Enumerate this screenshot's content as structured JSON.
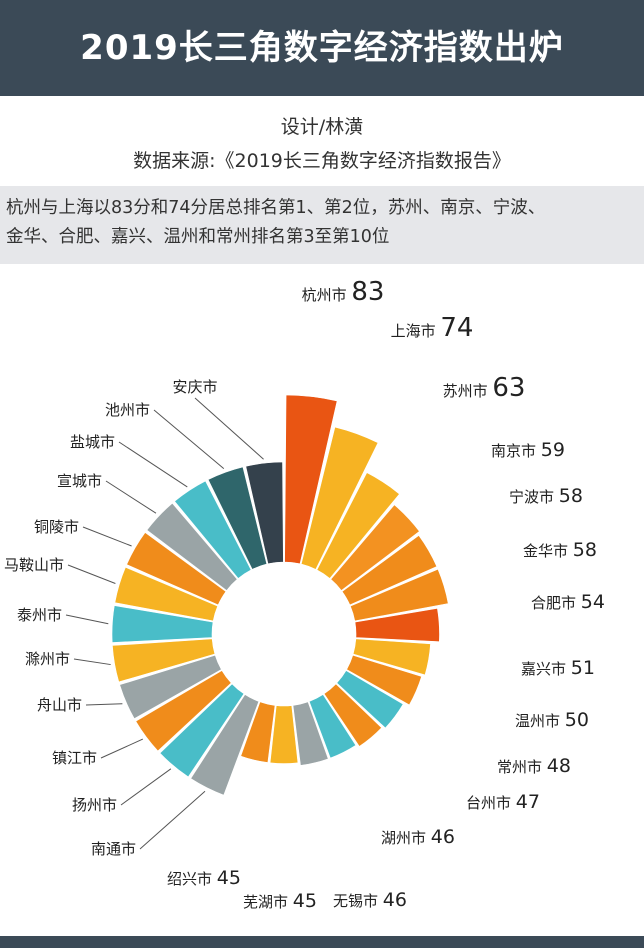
{
  "header": {
    "title": "2019长三角数字经济指数出炉"
  },
  "credits": {
    "designer": "设计/林潢",
    "source": "数据来源:《2019长三角数字经济指数报告》"
  },
  "intro": {
    "line1": "杭州与上海以83分和74分居总排名第1、第2位，苏州、南京、宁波、",
    "line2": "金华、合肥、嘉兴、温州和常州排名第3至第10位"
  },
  "chart_data": {
    "type": "bar",
    "subtype": "radial-bar",
    "categories": [
      "杭州市",
      "上海市",
      "苏州市",
      "南京市",
      "宁波市",
      "金华市",
      "合肥市",
      "嘉兴市",
      "温州市",
      "常州市",
      "台州市",
      "湖州市",
      "无锡市",
      "芜湖市",
      "绍兴市",
      "南通市",
      "扬州市",
      "镇江市",
      "舟山市",
      "滁州市",
      "泰州市",
      "马鞍山市",
      "铜陵市",
      "宣城市",
      "盐城市",
      "池州市",
      "安庆市"
    ],
    "values": [
      83,
      74,
      63,
      59,
      58,
      58,
      54,
      51,
      50,
      48,
      47,
      46,
      46,
      45,
      45,
      null,
      null,
      null,
      null,
      null,
      null,
      null,
      null,
      null,
      null,
      null,
      null
    ],
    "value_labels": [
      "83",
      "74",
      "63",
      "59",
      "58",
      "58",
      "54",
      "51",
      "50",
      "48",
      "47",
      "46",
      "46",
      "45",
      "45",
      "",
      "",
      "",
      "",
      "",
      "",
      "",
      "",
      "",
      "",
      "",
      ""
    ],
    "colors": [
      "#e95513",
      "#f6b323",
      "#f6b323",
      "#f39221",
      "#f08c1b",
      "#f08c1b",
      "#e95513",
      "#f6b323",
      "#f08c1b",
      "#49bdc8",
      "#f08c1b",
      "#49bdc8",
      "#9aa4a6",
      "#f6b323",
      "#f08c1b",
      "#9aa4a6",
      "#49bdc8",
      "#f08c1b",
      "#9aa4a6",
      "#f6b323",
      "#49bdc8",
      "#f6b323",
      "#f08c1b",
      "#9aa4a6",
      "#49bdc8",
      "#2f666b",
      "#34414c"
    ],
    "title": "2019长三角数字经济指数出炉",
    "legend": "none"
  }
}
